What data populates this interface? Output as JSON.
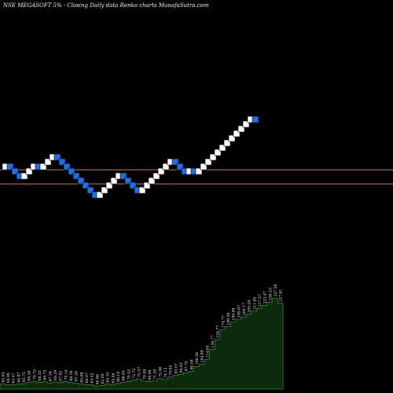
{
  "header": {
    "title": "NSE MEGASOFT 5% - Closing Daily data Renko charts MunafaSutra.com"
  },
  "colors": {
    "background": "#000000",
    "up_brick": "#ffffff",
    "down_brick": "#1e6fe8",
    "brick_outline": "#000000",
    "reference_line": "#c87a4a",
    "volume_fill": "#0d2a0d",
    "volume_stroke": "#2e8b2e",
    "label": "#f2f2f2"
  },
  "chart_data": [
    {
      "type": "renko",
      "title": "NSE MEGASOFT 5% - Closing Daily data Renko charts MunafaSutra.com",
      "brick_size_percent": 5,
      "bricks": [
        "up",
        "down",
        "down",
        "down",
        "up",
        "up",
        "up",
        "down",
        "up",
        "up",
        "up",
        "down",
        "down",
        "down",
        "down",
        "down",
        "down",
        "down",
        "down",
        "down",
        "up",
        "up",
        "up",
        "up",
        "up",
        "down",
        "down",
        "down",
        "down",
        "up",
        "up",
        "up",
        "up",
        "up",
        "up",
        "up",
        "down",
        "down",
        "down",
        "up",
        "down",
        "up",
        "up",
        "up",
        "up",
        "up",
        "up",
        "up",
        "up",
        "up",
        "up",
        "up",
        "up",
        "down"
      ],
      "reference_lines": [
        "upper",
        "lower"
      ]
    },
    {
      "type": "area",
      "series": [
        {
          "values": [
            65.05,
            64.06,
            63.47,
            64.87,
            65.75,
            68.28,
            70.75,
            68.33,
            69.72,
            67.26,
            69.29,
            67.92,
            70.14,
            68.16,
            67.28,
            65.08,
            64.07,
            63.42,
            60.88,
            62.09,
            65.33,
            63.46,
            66.19,
            68.85,
            70.53,
            72.72,
            75.57,
            70.99,
            69.94,
            71.2,
            75.96,
            74.12,
            79.04,
            83.07,
            84.62,
            87.74,
            90.58,
            100.58,
            104.89,
            114.65,
            134.77,
            154.77,
            174.77,
            180.56,
            189.88,
            195.67,
            200.17,
            205.49,
            211.85,
            217.57,
            223.47,
            230.23,
            237.56,
            227.81
          ],
          "labels": [
            "65.05",
            "64.06",
            "63.47",
            "64.87",
            "65.75",
            "68.28",
            "70.75",
            "68.33",
            "69.72",
            "67.26",
            "69.29",
            "67.92",
            "70.14",
            "68.16",
            "67.28",
            "65.08",
            "64.07",
            "63.42",
            "60.88",
            "62.09",
            "65.33",
            "63.46",
            "66.19",
            "68.85",
            "70.53",
            "72.72",
            "75.57",
            "70.99",
            "69.94",
            "71.20",
            "75.96",
            "74.12",
            "79.04",
            "83.07",
            "84.62",
            "87.74",
            "90.58",
            "100.58",
            "104.89",
            "114.65",
            "134.77",
            "154.77",
            "174.77",
            "180.56",
            "189.88",
            "195.67",
            "200.17",
            "205.49",
            "211.85",
            "217.57",
            "223.47",
            "230.23",
            "237.56",
            "227.81"
          ]
        }
      ]
    }
  ]
}
